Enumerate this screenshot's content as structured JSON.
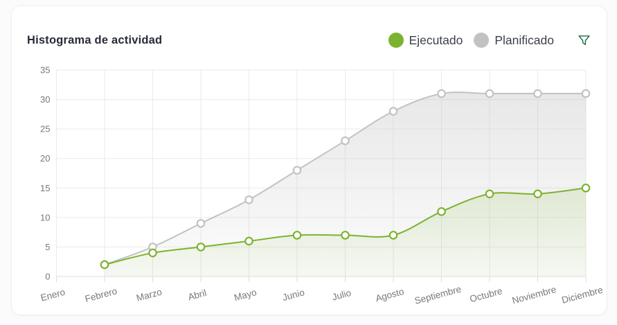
{
  "header": {
    "title": "Histograma de actividad"
  },
  "chart_data": {
    "type": "area",
    "title": "Histograma de actividad",
    "categories": [
      "Enero",
      "Febrero",
      "Marzo",
      "Abril",
      "Mayo",
      "Junio",
      "Julio",
      "Agosto",
      "Septiembre",
      "Octubre",
      "Noviembre",
      "Diciembre"
    ],
    "series": [
      {
        "name": "Ejecutado",
        "color": "#7CB32E",
        "values": [
          null,
          2,
          4,
          5,
          6,
          7,
          7,
          7,
          11,
          14,
          14,
          15
        ]
      },
      {
        "name": "Planificado",
        "color": "#C2C2C2",
        "values": [
          null,
          2,
          5,
          9,
          13,
          18,
          23,
          28,
          31,
          31,
          31,
          31
        ]
      }
    ],
    "xlabel": "",
    "ylabel": "",
    "ylim": [
      0,
      35
    ],
    "ytick_step": 5,
    "grid": true,
    "legend_position": "top-right",
    "x_label_rotation": -15,
    "line_style": "smooth",
    "marker": "hollow-circle"
  },
  "colors": {
    "page_bg": "#FBFBFB",
    "card_bg": "#FFFFFF",
    "card_border": "#EFEFEF",
    "grid_line": "#EAEAEA",
    "axis_line": "#DCDCDC",
    "axis_text": "#77787B",
    "title_text": "#272B39",
    "legend_text": "#3B4049",
    "filter_icon": "#1C6B46"
  }
}
